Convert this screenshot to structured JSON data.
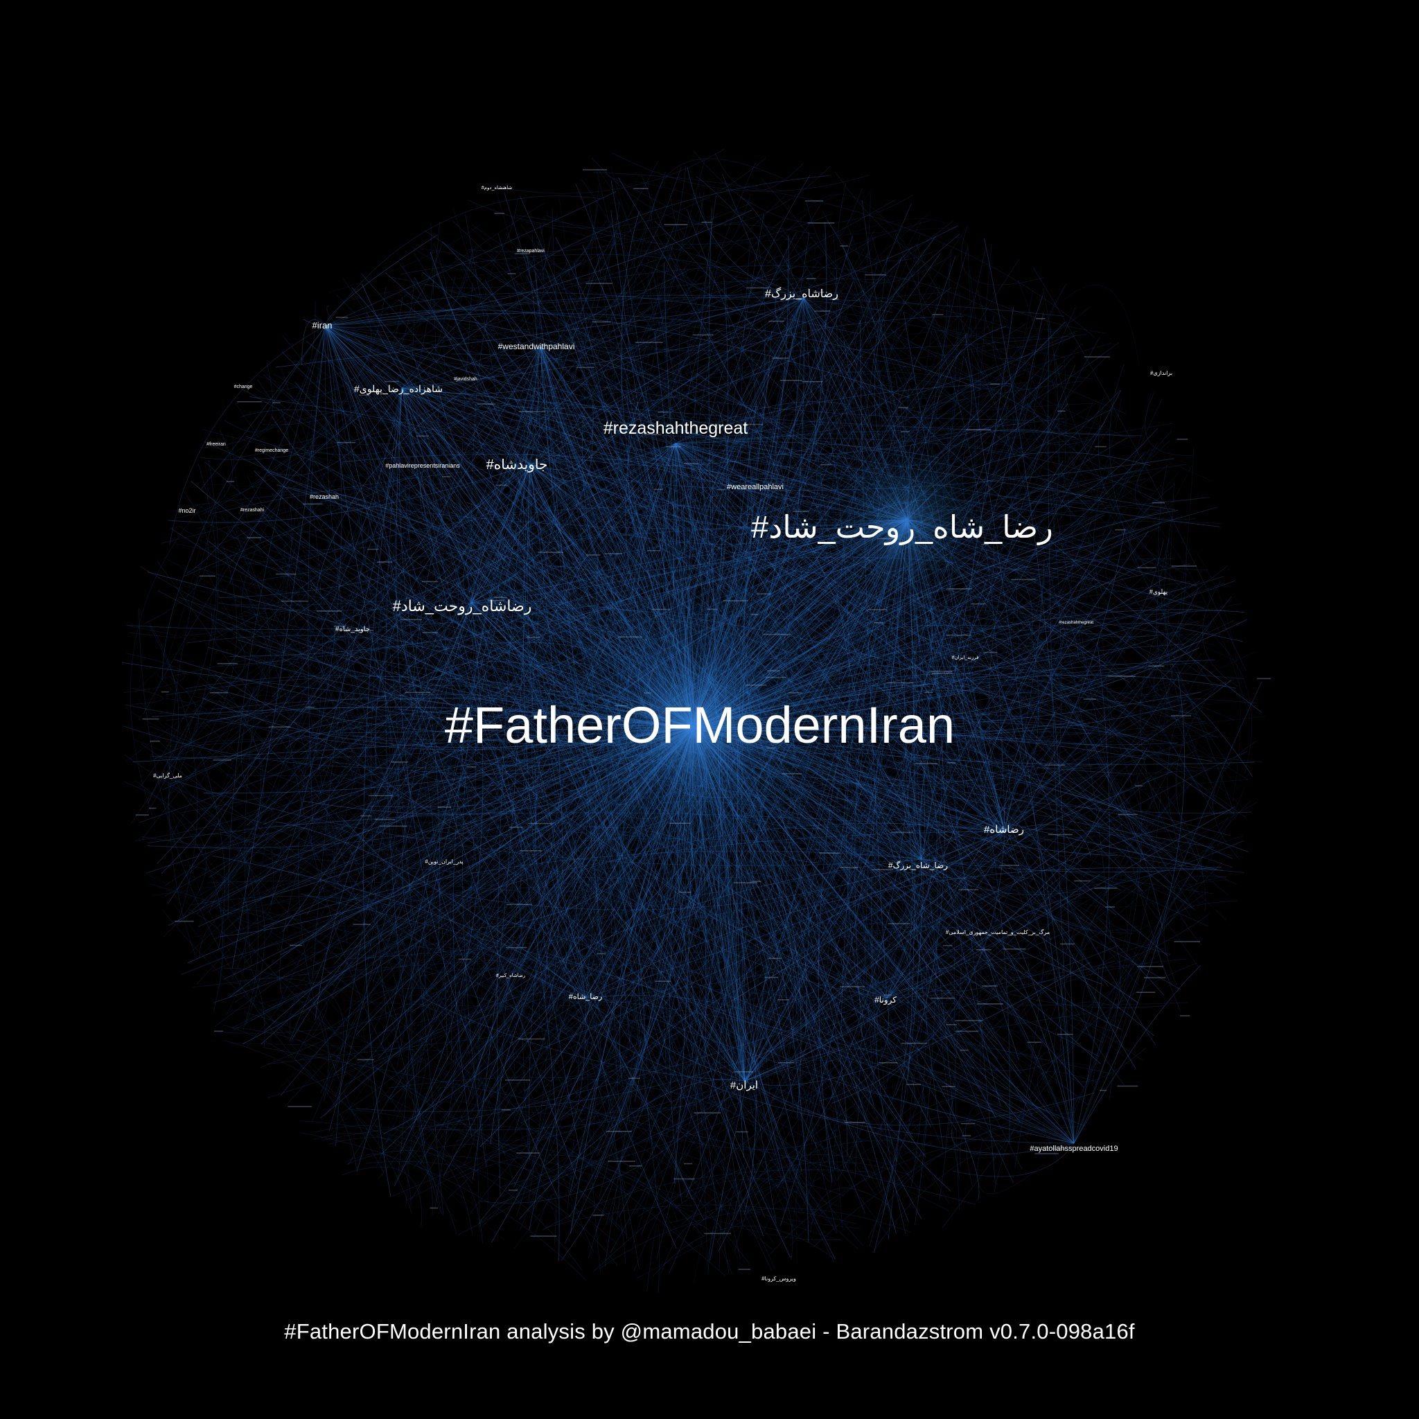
{
  "colors": {
    "background": "#000000",
    "edge": "#2f78d0",
    "edge_faint": "#1c4f8f",
    "glow": "#3d8fe8",
    "label": "#ffffff"
  },
  "caption": "#FatherOFModernIran analysis by @mamadou_babaei - Barandazstrom v0.7.0-098a16f",
  "network": {
    "central_hub": "#FatherOFModernIran",
    "hashtags": [
      {
        "id": "h1",
        "label": "#FatherOFModernIran"
      },
      {
        "id": "h2",
        "label": "#رضا_شاه_روحت_شاد"
      },
      {
        "id": "h3",
        "label": "#rezashahthegreat"
      },
      {
        "id": "h4",
        "label": "#رضاشاه_روحت_شاد"
      },
      {
        "id": "h5",
        "label": "#جاویدشاه"
      },
      {
        "id": "h6",
        "label": "#رضاشاه_بزرگ"
      },
      {
        "id": "h7",
        "label": "#شاهزاده_رضا_پهلوی"
      },
      {
        "id": "h8",
        "label": "#رضاشاه"
      },
      {
        "id": "h9",
        "label": "#ایران"
      },
      {
        "id": "h10",
        "label": "#westandwithpahlavi"
      },
      {
        "id": "h11",
        "label": "#iran"
      },
      {
        "id": "h12",
        "label": "#weareallpahlavi"
      },
      {
        "id": "h13",
        "label": "#رضا_شاه_بزرگ"
      },
      {
        "id": "h14",
        "label": "#pahlavirepresentsiranians"
      },
      {
        "id": "h15",
        "label": "#ayatollahsspreadcovid19"
      },
      {
        "id": "h16",
        "label": "#کرونا"
      },
      {
        "id": "h17",
        "label": "#رضا_شاه"
      },
      {
        "id": "h18",
        "label": "#جاوید_شاه"
      },
      {
        "id": "h19",
        "label": "#rezashah"
      },
      {
        "id": "h20",
        "label": "#no2ir"
      },
      {
        "id": "h21",
        "label": "#regimechange"
      },
      {
        "id": "h22",
        "label": "#freeiran"
      },
      {
        "id": "h23",
        "label": "#change"
      },
      {
        "id": "h24",
        "label": "#javidshah"
      },
      {
        "id": "h25",
        "label": "#rezapahlavi"
      },
      {
        "id": "h26",
        "label": "#پهلوی"
      },
      {
        "id": "h27",
        "label": "#براندازی"
      },
      {
        "id": "h28",
        "label": "#رضاشاه_کبیر"
      },
      {
        "id": "h29",
        "label": "#مرگ_بر_کلیت_و_تمامیت_جمهوری_اسلامی"
      },
      {
        "id": "h30",
        "label": "#ویروس_کرونا"
      },
      {
        "id": "h31",
        "label": "#پدر_ایران_نوین"
      },
      {
        "id": "h32",
        "label": "#شاهنشاه_دوم"
      },
      {
        "id": "h33",
        "label": "#فرزند_ایران"
      },
      {
        "id": "h34",
        "label": "#rezashahthegreat"
      },
      {
        "id": "h35",
        "label": "#rezashahi"
      },
      {
        "id": "h36",
        "label": "#ملی_گرایی"
      }
    ]
  }
}
